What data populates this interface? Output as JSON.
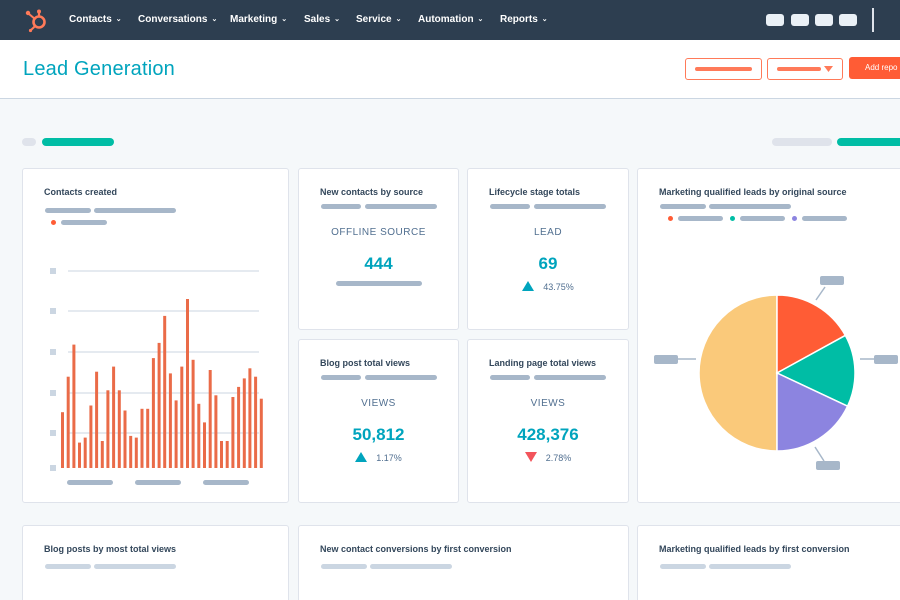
{
  "nav": {
    "items": [
      {
        "label": "Contacts"
      },
      {
        "label": "Conversations"
      },
      {
        "label": "Marketing"
      },
      {
        "label": "Sales"
      },
      {
        "label": "Service"
      },
      {
        "label": "Automation"
      },
      {
        "label": "Reports"
      }
    ]
  },
  "header": {
    "title": "Lead Generation",
    "primary_button": "Add repo"
  },
  "colors": {
    "nav_bg": "#2d3e50",
    "accent_teal": "#00a4bd",
    "accent_orange": "#ff5c35",
    "bar_orange": "#ea6b48",
    "pie_yellow": "#fac97a",
    "pie_orange": "#ff5c35",
    "pie_teal": "#00bda5",
    "pie_purple": "#8c84e0"
  },
  "cards": {
    "contacts_created": {
      "title": "Contacts created"
    },
    "new_contacts": {
      "title": "New contacts by source",
      "label": "OFFLINE SOURCE",
      "value": "444"
    },
    "lifecycle": {
      "title": "Lifecycle stage totals",
      "label": "LEAD",
      "value": "69",
      "change": "43.75%",
      "direction": "up"
    },
    "mql_source": {
      "title": "Marketing qualified leads by original source"
    },
    "blog_views": {
      "title": "Blog post total views",
      "label": "VIEWS",
      "value": "50,812",
      "change": "1.17%",
      "direction": "up"
    },
    "landing_views": {
      "title": "Landing page total views",
      "label": "VIEWS",
      "value": "428,376",
      "change": "2.78%",
      "direction": "down"
    },
    "blog_posts": {
      "title": "Blog posts by most total views"
    },
    "conversions": {
      "title": "New contact conversions by first conversion"
    },
    "mql_conversion": {
      "title": "Marketing qualified leads by first conversion"
    }
  },
  "chart_data": [
    {
      "type": "bar",
      "title": "Contacts created",
      "values": [
        0.33,
        0.54,
        0.73,
        0.15,
        0.18,
        0.37,
        0.57,
        0.16,
        0.46,
        0.6,
        0.46,
        0.34,
        0.19,
        0.18,
        0.35,
        0.35,
        0.65,
        0.74,
        0.9,
        0.56,
        0.4,
        0.6,
        1.0,
        0.64,
        0.38,
        0.27,
        0.58,
        0.43,
        0.16,
        0.16,
        0.42,
        0.48,
        0.53,
        0.59,
        0.54,
        0.41
      ],
      "ylim": [
        0,
        1
      ],
      "grid": true
    },
    {
      "type": "pie",
      "title": "Marketing qualified leads by original source",
      "values": [
        50,
        17,
        15,
        18
      ],
      "colors": [
        "#fac97a",
        "#ff5c35",
        "#00bda5",
        "#8c84e0"
      ]
    }
  ]
}
